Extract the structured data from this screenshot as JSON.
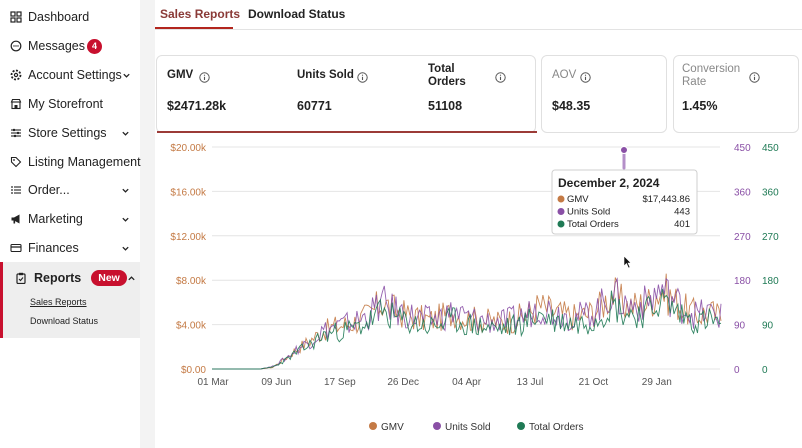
{
  "sidebar": {
    "items": [
      {
        "label": "Dashboard",
        "icon": "dashboard-icon"
      },
      {
        "label": "Messages",
        "icon": "chat-bubble-icon",
        "badge": "4"
      },
      {
        "label": "Account Settings",
        "icon": "gear-icon",
        "chevron": true
      },
      {
        "label": "My Storefront",
        "icon": "storefront-icon"
      },
      {
        "label": "Store Settings",
        "icon": "sliders-icon",
        "chevron": true
      },
      {
        "label": "Listing Management",
        "icon": "tag-icon"
      },
      {
        "label": "Order...",
        "icon": "list-icon",
        "chevron": true
      },
      {
        "label": "Marketing",
        "icon": "megaphone-icon",
        "chevron": true
      },
      {
        "label": "Finances",
        "icon": "credit-card-icon",
        "chevron": true
      }
    ],
    "reports": {
      "label": "Reports",
      "badge": "New",
      "sub_items": [
        "Sales Reports",
        "Download Status"
      ]
    }
  },
  "tabs": [
    {
      "label": "Sales Reports",
      "active": true
    },
    {
      "label": "Download Status",
      "active": false
    }
  ],
  "metrics": {
    "gmv": {
      "label": "GMV",
      "value": "$2471.28k"
    },
    "units": {
      "label": "Units Sold",
      "value": "60771"
    },
    "orders": {
      "label": "Total Orders",
      "value": "51108"
    },
    "aov": {
      "label": "AOV",
      "value": "$48.35"
    },
    "conversion": {
      "label": "Conversion Rate",
      "value": "1.45%"
    }
  },
  "tooltip": {
    "date": "December 2, 2024",
    "rows": [
      {
        "name": "GMV",
        "value": "$17,443.86"
      },
      {
        "name": "Units Sold",
        "value": "443"
      },
      {
        "name": "Total Orders",
        "value": "401"
      }
    ]
  },
  "colors": {
    "gmv": "#c47a45",
    "units": "#8a50a6",
    "orders": "#1f7a55",
    "accent": "#c8102e",
    "active_tab": "#8a3a37"
  },
  "chart_data": {
    "type": "line",
    "x_ticks": [
      "01 Mar",
      "09 Jun",
      "17 Sep",
      "26 Dec",
      "04 Apr",
      "13 Jul",
      "21 Oct",
      "29 Jan"
    ],
    "y_left": {
      "ticks": [
        "$0.00",
        "$4.00k",
        "$8.00k",
        "$12.00k",
        "$16.00k",
        "$20.00k"
      ],
      "range": [
        0,
        20000
      ]
    },
    "y_right_units": {
      "ticks": [
        "0",
        "90",
        "180",
        "270",
        "360",
        "450"
      ],
      "range": [
        0,
        450
      ]
    },
    "y_right_orders": {
      "ticks": [
        "0",
        "90",
        "180",
        "270",
        "360",
        "450"
      ],
      "range": [
        0,
        450
      ]
    },
    "series": [
      {
        "name": "GMV",
        "values": [
          0,
          0,
          0,
          0,
          0,
          150,
          900,
          1800,
          2500,
          3300,
          3800,
          4000,
          4300,
          4900,
          6000,
          5300,
          4900,
          4600,
          4400,
          4700,
          5100,
          4600,
          4400,
          4300,
          4200,
          4500,
          4900,
          5700,
          5200,
          4900,
          4700,
          4900,
          5600,
          6800,
          5800,
          5700,
          6000,
          7200,
          6300,
          5400,
          4900,
          5100,
          4700
        ]
      },
      {
        "name": "Units Sold",
        "values": [
          0,
          0,
          0,
          0,
          0,
          5,
          20,
          40,
          55,
          75,
          85,
          90,
          97,
          110,
          135,
          120,
          110,
          104,
          99,
          106,
          115,
          104,
          99,
          97,
          95,
          101,
          110,
          128,
          117,
          110,
          106,
          110,
          126,
          153,
          131,
          128,
          135,
          162,
          142,
          122,
          110,
          115,
          106
        ]
      },
      {
        "name": "Total Orders",
        "values": [
          0,
          0,
          0,
          0,
          0,
          4,
          17,
          34,
          48,
          65,
          74,
          78,
          84,
          96,
          117,
          104,
          96,
          90,
          86,
          92,
          100,
          90,
          86,
          84,
          82,
          88,
          96,
          111,
          101,
          96,
          92,
          96,
          109,
          133,
          113,
          111,
          117,
          140,
          123,
          106,
          96,
          100,
          92
        ]
      }
    ],
    "legend_placement": "bottom-center",
    "grid": true
  }
}
